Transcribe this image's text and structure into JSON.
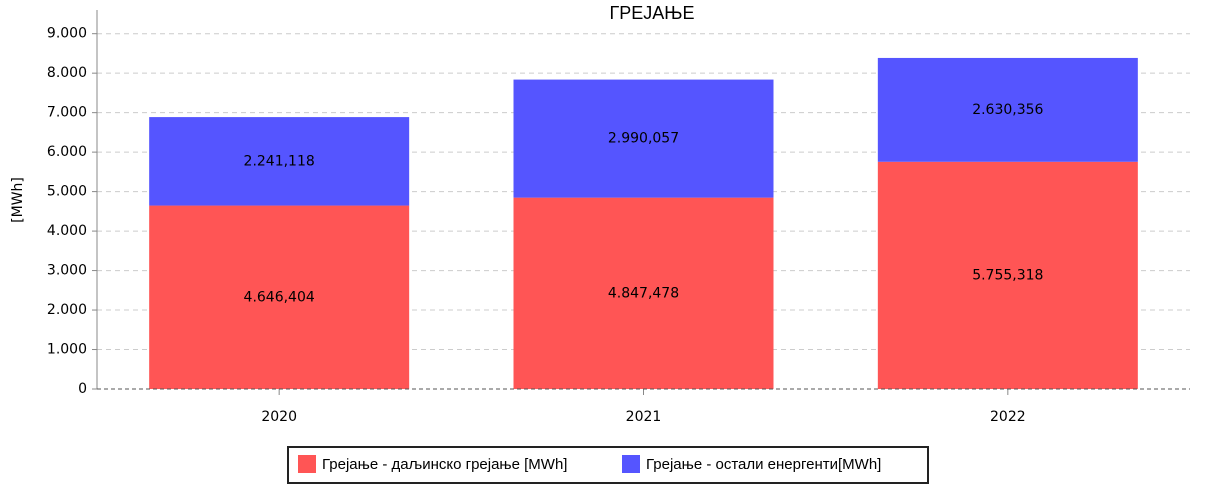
{
  "chart_data": {
    "type": "stacked_bar",
    "title": "ГРЕЈАЊЕ",
    "y_label": "[MWh]",
    "categories": [
      "2020",
      "2021",
      "2022"
    ],
    "series": [
      {
        "name": "Грејање - даљинско грејање [MWh]",
        "color": "#ff5555",
        "values": [
          4646.404,
          4847.478,
          5755.318
        ],
        "value_labels": [
          "4.646,404",
          "4.847,478",
          "5.755,318"
        ]
      },
      {
        "name": "Грејање - остали енергенти[MWh]",
        "color": "#5555ff",
        "values": [
          2241.118,
          2990.057,
          2630.356
        ],
        "value_labels": [
          "2.241,118",
          "2.990,057",
          "2.630,356"
        ]
      }
    ],
    "ylim": [
      0,
      9600
    ],
    "yticks": [
      0,
      {
        "value": 1000,
        "label": "1.000"
      },
      {
        "value": 2000,
        "label": "2.000"
      },
      {
        "value": 3000,
        "label": "3.000"
      },
      {
        "value": 4000,
        "label": "4.000"
      },
      {
        "value": 5000,
        "label": "5.000"
      },
      {
        "value": 6000,
        "label": "6.000"
      },
      {
        "value": 7000,
        "label": "7.000"
      },
      {
        "value": 8000,
        "label": "8.000"
      },
      {
        "value": 9000,
        "label": "9.000"
      }
    ],
    "grid": true,
    "legend": "bottom"
  }
}
